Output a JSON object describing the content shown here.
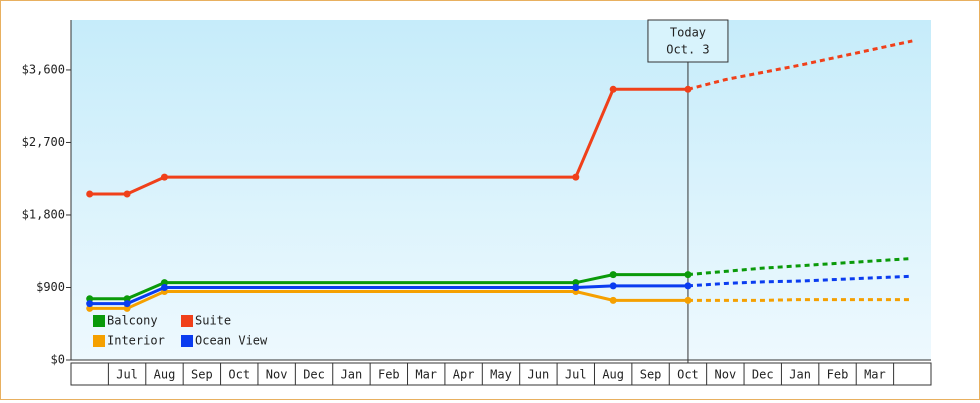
{
  "chart_data": {
    "type": "line",
    "categories": [
      null,
      "Jul",
      "Aug",
      "Sep",
      "Oct",
      "Nov",
      "Dec",
      "Jan",
      "Feb",
      "Mar",
      "Apr",
      "May",
      "Jun",
      "Jul",
      "Aug",
      "Sep",
      "Oct",
      "Nov",
      "Dec",
      "Jan",
      "Feb",
      "Mar",
      null
    ],
    "ylim": [
      0,
      4220
    ],
    "yticks": [
      {
        "value": 0,
        "label": "$0"
      },
      {
        "value": 900,
        "label": "$900"
      },
      {
        "value": 1800,
        "label": "$1,800"
      },
      {
        "value": 2700,
        "label": "$2,700"
      },
      {
        "value": 3600,
        "label": "$3,600"
      }
    ],
    "today_index": 16,
    "today_label": [
      "Today",
      "Oct. 3"
    ],
    "legend": "bottom-left",
    "series": [
      {
        "name": "Balcony",
        "color": "#0a9a0a",
        "values": [
          760,
          760,
          960,
          960,
          960,
          960,
          960,
          960,
          960,
          960,
          960,
          960,
          960,
          960,
          1060,
          1060,
          1060,
          1100,
          1140,
          1170,
          1200,
          1230,
          1260
        ]
      },
      {
        "name": "Suite",
        "color": "#f0401a",
        "values": [
          2060,
          2060,
          2270,
          2270,
          2270,
          2270,
          2270,
          2270,
          2270,
          2270,
          2270,
          2270,
          2270,
          2270,
          3360,
          3360,
          3360,
          3480,
          3570,
          3660,
          3760,
          3860,
          3960
        ]
      },
      {
        "name": "Interior",
        "color": "#f5a000",
        "values": [
          640,
          640,
          850,
          850,
          850,
          850,
          850,
          850,
          850,
          850,
          850,
          850,
          850,
          850,
          740,
          740,
          740,
          740,
          740,
          750,
          750,
          750,
          750
        ]
      },
      {
        "name": "Ocean View",
        "color": "#0a3cf0",
        "values": [
          700,
          700,
          900,
          900,
          900,
          900,
          900,
          900,
          900,
          900,
          900,
          900,
          900,
          900,
          920,
          920,
          920,
          950,
          970,
          980,
          1000,
          1020,
          1040
        ]
      }
    ]
  }
}
